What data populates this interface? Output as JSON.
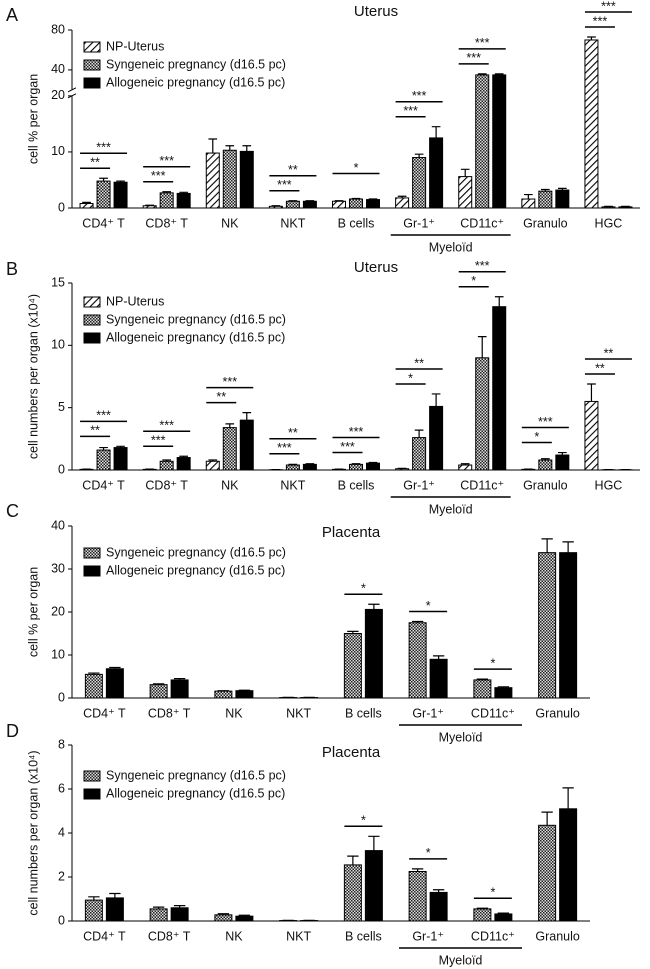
{
  "chart_data": [
    {
      "type": "bar",
      "panel_label": "A",
      "title": "Uterus",
      "ylabel": "cell % per organ",
      "categories": [
        "CD4⁺ T",
        "CD8⁺ T",
        "NK",
        "NKT",
        "B cells",
        "Gr-1⁺",
        "CD11c⁺",
        "Granulo",
        "HGC"
      ],
      "groups": [
        {
          "label": "Myeloïd",
          "categories": [
            "Gr-1⁺",
            "CD11c⁺"
          ]
        }
      ],
      "ylim": [
        0,
        80
      ],
      "ybreak": 20,
      "yticks": [
        0,
        10,
        20,
        40,
        80
      ],
      "series": [
        {
          "name": "NP-Uterus",
          "pattern": "hatch",
          "color": "#000000",
          "values": [
            0.8,
            0.4,
            9.8,
            0.3,
            1.2,
            1.8,
            5.6,
            1.6,
            70
          ],
          "errors": [
            0.2,
            0.1,
            2.5,
            0.1,
            0.1,
            0.3,
            1.3,
            0.8,
            3
          ]
        },
        {
          "name": "Syngeneic pregnancy (d16.5 pc)",
          "pattern": "check",
          "color": "#000000",
          "values": [
            4.8,
            2.7,
            10.3,
            1.2,
            1.6,
            9.0,
            35,
            3.0,
            0.2
          ],
          "errors": [
            0.5,
            0.2,
            0.8,
            0.1,
            0.1,
            0.6,
            1,
            0.3,
            0.1
          ],
          "significance": [
            "**",
            "***",
            null,
            "***",
            null,
            "***",
            "***",
            null,
            "***"
          ]
        },
        {
          "name": "Allogeneic pregnancy (d16.5 pc)",
          "pattern": "solid",
          "color": "#000000",
          "values": [
            4.6,
            2.6,
            10.1,
            1.2,
            1.5,
            12.5,
            35,
            3.2,
            0.2
          ],
          "errors": [
            0.2,
            0.2,
            1.0,
            0.1,
            0.1,
            2.0,
            1,
            0.3,
            0.1
          ],
          "significance": [
            "***",
            "***",
            null,
            "**",
            "*",
            "***",
            "***",
            null,
            "***"
          ]
        }
      ]
    },
    {
      "type": "bar",
      "panel_label": "B",
      "title": "Uterus",
      "ylabel": "cell numbers per organ (x10⁴)",
      "categories": [
        "CD4⁺ T",
        "CD8⁺ T",
        "NK",
        "NKT",
        "B cells",
        "Gr-1⁺",
        "CD11c⁺",
        "Granulo",
        "HGC"
      ],
      "groups": [
        {
          "label": "Myeloïd",
          "categories": [
            "Gr-1⁺",
            "CD11c⁺"
          ]
        }
      ],
      "ylim": [
        0,
        15
      ],
      "yticks": [
        0,
        5,
        10,
        15
      ],
      "series": [
        {
          "name": "NP-Uterus",
          "pattern": "hatch",
          "color": "#000000",
          "values": [
            0.05,
            0.05,
            0.7,
            0.02,
            0.05,
            0.1,
            0.4,
            0.05,
            5.5
          ],
          "errors": [
            0.02,
            0.02,
            0.1,
            0.01,
            0.02,
            0.03,
            0.1,
            0.02,
            1.4
          ]
        },
        {
          "name": "Syngeneic pregnancy (d16.5 pc)",
          "pattern": "check",
          "color": "#000000",
          "values": [
            1.6,
            0.7,
            3.4,
            0.4,
            0.45,
            2.6,
            9.0,
            0.8,
            0.02
          ],
          "errors": [
            0.2,
            0.1,
            0.3,
            0.05,
            0.05,
            0.6,
            1.7,
            0.1,
            0.01
          ],
          "significance": [
            "**",
            "***",
            "**",
            "***",
            "***",
            "*",
            "*",
            "*",
            "**"
          ]
        },
        {
          "name": "Allogeneic pregnancy (d16.5 pc)",
          "pattern": "solid",
          "color": "#000000",
          "values": [
            1.8,
            1.0,
            4.0,
            0.45,
            0.55,
            5.1,
            13.1,
            1.2,
            0.02
          ],
          "errors": [
            0.1,
            0.1,
            0.6,
            0.05,
            0.05,
            1.0,
            0.8,
            0.2,
            0.01
          ],
          "significance": [
            "***",
            "***",
            "***",
            "**",
            "***",
            "**",
            "***",
            "***",
            "**"
          ]
        }
      ]
    },
    {
      "type": "bar",
      "panel_label": "C",
      "title": "Placenta",
      "ylabel": "cell % per organ",
      "categories": [
        "CD4⁺ T",
        "CD8⁺ T",
        "NK",
        "NKT",
        "B cells",
        "Gr-1⁺",
        "CD11c⁺",
        "Granulo"
      ],
      "groups": [
        {
          "label": "Myeloïd",
          "categories": [
            "Gr-1⁺",
            "CD11c⁺"
          ]
        }
      ],
      "ylim": [
        0,
        40
      ],
      "yticks": [
        0,
        10,
        20,
        30,
        40
      ],
      "series": [
        {
          "name": "Syngeneic pregnancy (d16.5 pc)",
          "pattern": "check",
          "color": "#000000",
          "values": [
            5.5,
            3.1,
            1.6,
            0.1,
            15,
            17.5,
            4.2,
            33.8
          ],
          "errors": [
            0.3,
            0.2,
            0.1,
            0.05,
            0.5,
            0.3,
            0.2,
            3.2
          ]
        },
        {
          "name": "Allogeneic pregnancy (d16.5 pc)",
          "pattern": "solid",
          "color": "#000000",
          "values": [
            6.8,
            4.2,
            1.7,
            0.1,
            20.6,
            9.0,
            2.4,
            33.8
          ],
          "errors": [
            0.3,
            0.3,
            0.1,
            0.05,
            1.2,
            0.8,
            0.2,
            2.5
          ],
          "significance": [
            null,
            null,
            null,
            null,
            "*",
            "*",
            "*",
            null
          ]
        }
      ]
    },
    {
      "type": "bar",
      "panel_label": "D",
      "title": "Placenta",
      "ylabel": "cell numbers per organ (x10⁴)",
      "categories": [
        "CD4⁺ T",
        "CD8⁺ T",
        "NK",
        "NKT",
        "B cells",
        "Gr-1⁺",
        "CD11c⁺",
        "Granulo"
      ],
      "groups": [
        {
          "label": "Myeloïd",
          "categories": [
            "Gr-1⁺",
            "CD11c⁺"
          ]
        }
      ],
      "ylim": [
        0,
        8
      ],
      "yticks": [
        0,
        2,
        4,
        6,
        8
      ],
      "series": [
        {
          "name": "Syngeneic pregnancy (d16.5 pc)",
          "pattern": "check",
          "color": "#000000",
          "values": [
            0.95,
            0.55,
            0.28,
            0.02,
            2.55,
            2.25,
            0.55,
            4.35
          ],
          "errors": [
            0.15,
            0.08,
            0.05,
            0.01,
            0.4,
            0.12,
            0.03,
            0.6
          ]
        },
        {
          "name": "Allogeneic pregnancy (d16.5 pc)",
          "pattern": "solid",
          "color": "#000000",
          "values": [
            1.05,
            0.6,
            0.22,
            0.02,
            3.2,
            1.3,
            0.32,
            5.1
          ],
          "errors": [
            0.2,
            0.1,
            0.04,
            0.01,
            0.65,
            0.12,
            0.04,
            0.95
          ],
          "significance": [
            null,
            null,
            null,
            null,
            "*",
            "*",
            "*",
            null
          ]
        }
      ]
    }
  ]
}
